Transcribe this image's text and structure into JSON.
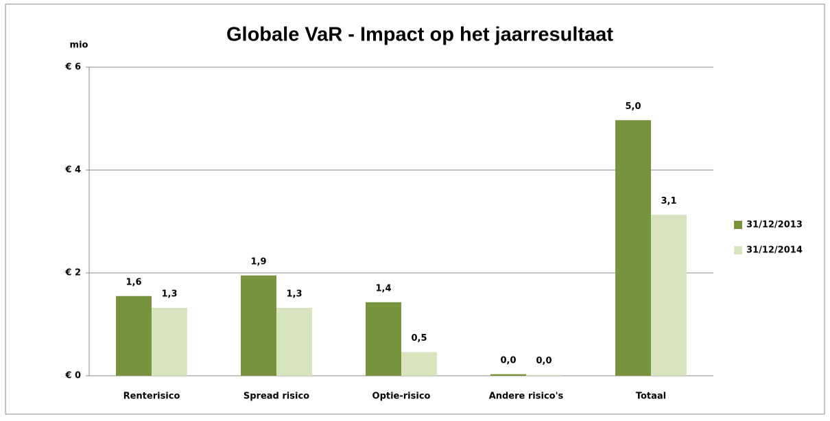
{
  "chart_data": {
    "type": "bar",
    "title": "Globale VaR - Impact op het jaarresultaat",
    "y_unit_label": "mio",
    "categories": [
      "Renterisico",
      "Spread risico",
      "Optie-risico",
      "Andere risico's",
      "Totaal"
    ],
    "series": [
      {
        "name": "31/12/2013",
        "color": "#77933c",
        "values": [
          1.55,
          1.95,
          1.43,
          0.03,
          4.97
        ],
        "value_labels": [
          "1,6",
          "1,9",
          "1,4",
          "0,0",
          "5,0"
        ]
      },
      {
        "name": "31/12/2014",
        "color": "#d7e4bd",
        "values": [
          1.32,
          1.32,
          0.46,
          0.02,
          3.13
        ],
        "value_labels": [
          "1,3",
          "1,3",
          "0,5",
          "0,0",
          "3,1"
        ]
      }
    ],
    "ylim": [
      0,
      6
    ],
    "yticks": [
      {
        "value": 0,
        "label": "€ 0"
      },
      {
        "value": 2,
        "label": "€ 2"
      },
      {
        "value": 4,
        "label": "€ 4"
      },
      {
        "value": 6,
        "label": "€ 6"
      }
    ],
    "grid": true,
    "legend": "right"
  }
}
